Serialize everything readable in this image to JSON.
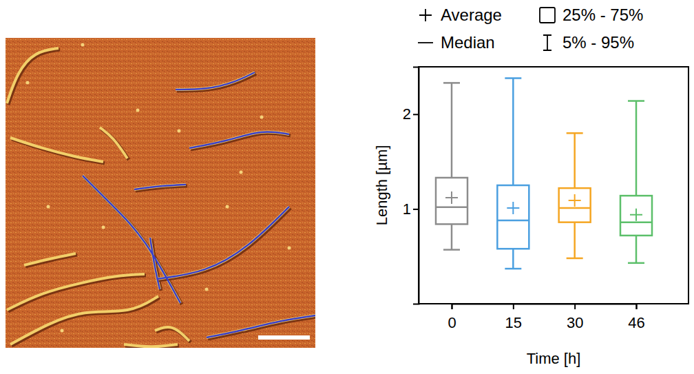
{
  "chart_data": {
    "type": "box",
    "x_label": "Time [h]",
    "y_label": "Length [µm]",
    "categories": [
      "0",
      "15",
      "30",
      "46"
    ],
    "colors": [
      "#8c8c8c",
      "#4a9fe0",
      "#f5a623",
      "#5cbf6a"
    ],
    "whisker_low": [
      0.57,
      0.37,
      0.48,
      0.43
    ],
    "q1": [
      0.84,
      0.58,
      0.86,
      0.72
    ],
    "median": [
      1.02,
      0.88,
      1.01,
      0.86
    ],
    "mean": [
      1.12,
      1.01,
      1.09,
      0.94
    ],
    "q3": [
      1.33,
      1.25,
      1.22,
      1.14
    ],
    "whisker_high": [
      2.33,
      2.38,
      1.8,
      2.14
    ],
    "ylim": [
      0,
      2.5
    ],
    "yticks": [
      1,
      2
    ],
    "grid": false,
    "legend": "top",
    "legend_entries": [
      "Average",
      "Median",
      "25% - 75%",
      "5% - 95%"
    ]
  }
}
